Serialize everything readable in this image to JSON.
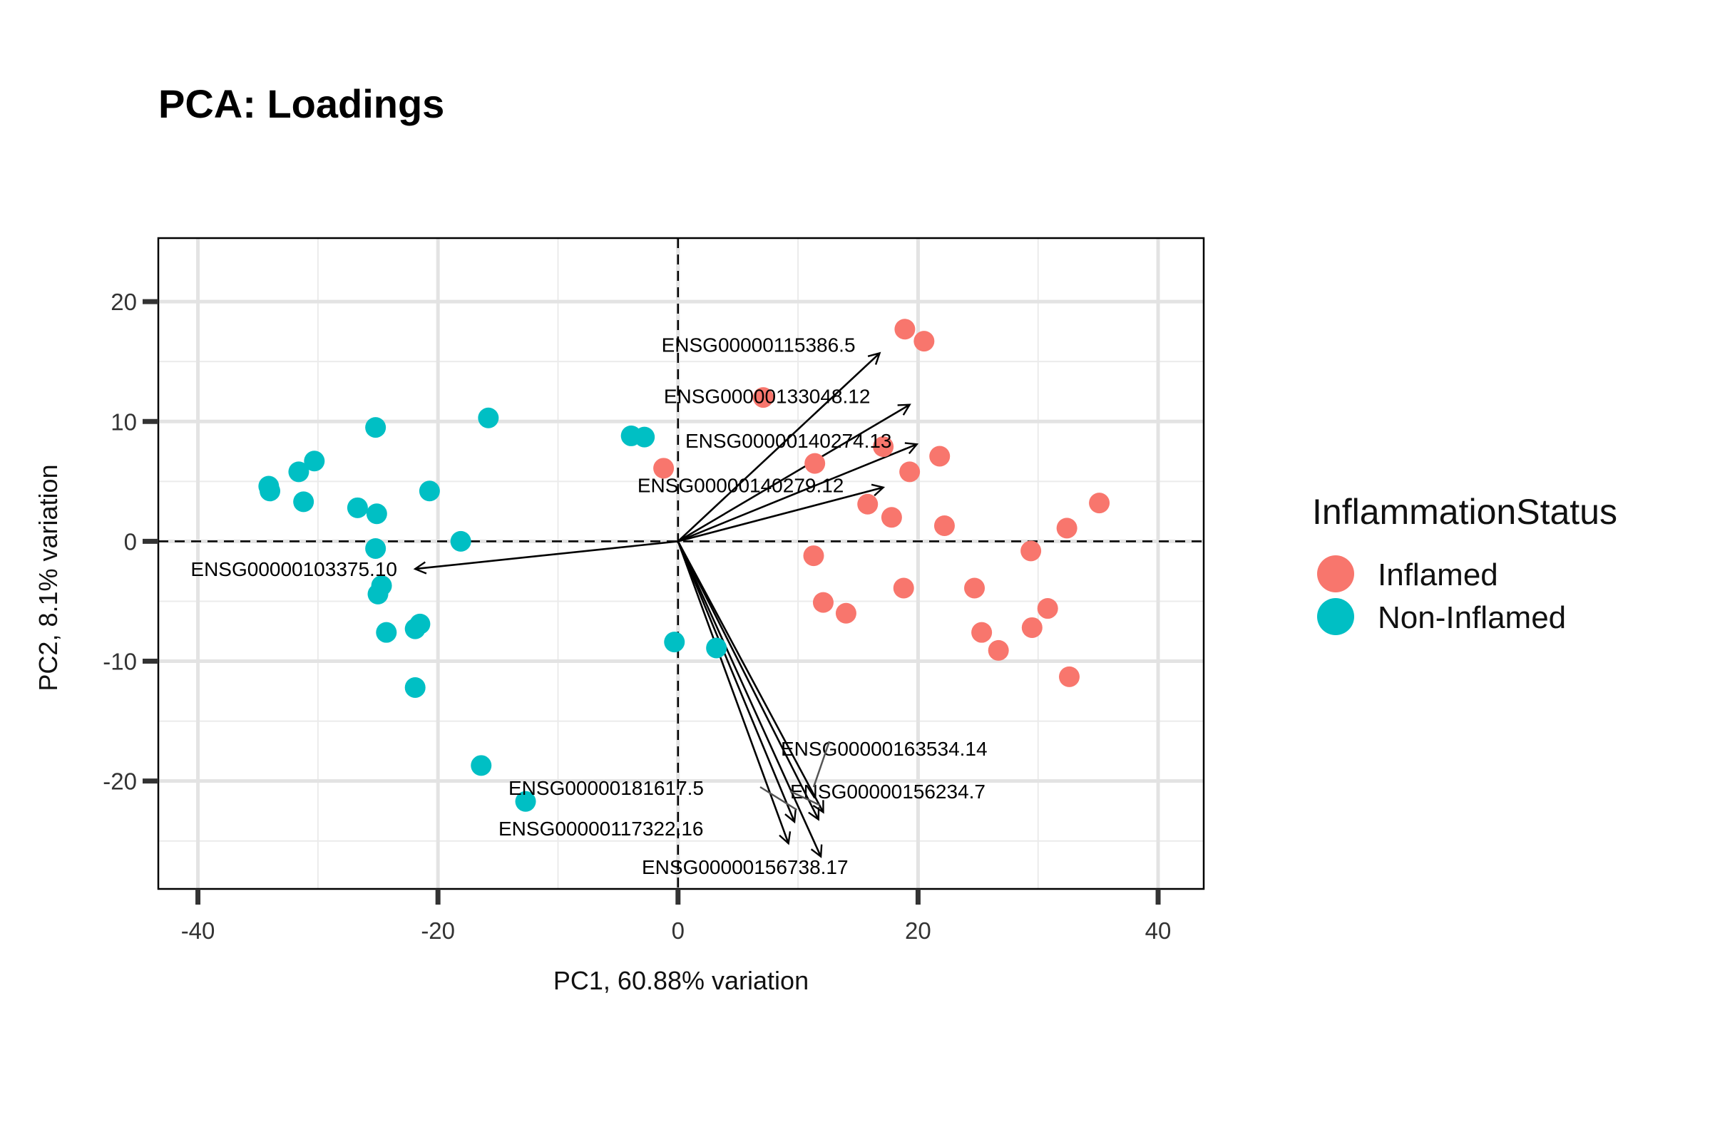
{
  "chart_data": {
    "type": "scatter",
    "title": "PCA: Loadings",
    "xlabel": "PC1, 60.88% variation",
    "ylabel": "PC2, 8.1% variation",
    "xlim": [
      -43.3,
      43.8
    ],
    "ylim": [
      -29.0,
      25.3
    ],
    "x_ticks": [
      -40,
      -20,
      0,
      20,
      40
    ],
    "x_tick_labels": [
      "-40",
      "-20",
      "0",
      "20",
      "40"
    ],
    "y_ticks": [
      -20,
      -10,
      0,
      10,
      20
    ],
    "y_tick_labels": [
      "-20",
      "-10",
      "0",
      "10",
      "20"
    ],
    "grid": true,
    "legend_position": "right",
    "legend_title": "InflammationStatus",
    "series": [
      {
        "name": "Inflamed",
        "color": "#F8766D",
        "points": [
          [
            18.9,
            17.7
          ],
          [
            20.5,
            16.7
          ],
          [
            7.1,
            12.0
          ],
          [
            17.1,
            7.9
          ],
          [
            21.8,
            7.1
          ],
          [
            11.4,
            6.5
          ],
          [
            19.3,
            5.8
          ],
          [
            -1.2,
            6.1
          ],
          [
            15.8,
            3.1
          ],
          [
            17.8,
            2.0
          ],
          [
            22.2,
            1.3
          ],
          [
            35.1,
            3.2
          ],
          [
            32.4,
            1.1
          ],
          [
            29.4,
            -0.8
          ],
          [
            11.3,
            -1.2
          ],
          [
            18.8,
            -3.9
          ],
          [
            24.7,
            -3.9
          ],
          [
            12.1,
            -5.1
          ],
          [
            14.0,
            -6.0
          ],
          [
            30.8,
            -5.6
          ],
          [
            25.3,
            -7.6
          ],
          [
            29.5,
            -7.2
          ],
          [
            26.7,
            -9.1
          ],
          [
            32.6,
            -11.3
          ]
        ]
      },
      {
        "name": "Non-Inflamed",
        "color": "#00BFC4",
        "points": [
          [
            -34.1,
            4.6
          ],
          [
            -34.0,
            4.2
          ],
          [
            -31.6,
            5.8
          ],
          [
            -30.3,
            6.7
          ],
          [
            -31.2,
            3.3
          ],
          [
            -25.2,
            9.5
          ],
          [
            -15.8,
            10.3
          ],
          [
            -26.7,
            2.8
          ],
          [
            -25.1,
            2.3
          ],
          [
            -20.7,
            4.2
          ],
          [
            -18.1,
            0.0
          ],
          [
            -25.2,
            -0.6
          ],
          [
            -24.7,
            -3.7
          ],
          [
            -25.0,
            -4.4
          ],
          [
            -24.3,
            -7.6
          ],
          [
            -21.9,
            -7.3
          ],
          [
            -21.5,
            -6.9
          ],
          [
            -21.9,
            -12.2
          ],
          [
            -16.4,
            -18.7
          ],
          [
            -12.7,
            -21.7
          ],
          [
            -3.9,
            8.8
          ],
          [
            -2.8,
            8.7
          ],
          [
            -0.3,
            -8.4
          ],
          [
            3.2,
            -8.9
          ]
        ]
      }
    ],
    "loadings": [
      {
        "label": "ENSG00000115386.5",
        "x": 16.8,
        "y": 15.7
      },
      {
        "label": "ENSG00000133048.12",
        "x": 19.3,
        "y": 11.4
      },
      {
        "label": "ENSG00000140274.13",
        "x": 19.9,
        "y": 8.1
      },
      {
        "label": "ENSG00000140279.12",
        "x": 17.1,
        "y": 4.5
      },
      {
        "label": "ENSG00000103375.10",
        "x": -21.9,
        "y": -2.3
      },
      {
        "label": "ENSG00000163534.14",
        "x": 11.7,
        "y": -23.2
      },
      {
        "label": "ENSG00000181617.5",
        "x": 9.7,
        "y": -23.4
      },
      {
        "label": "ENSG00000156234.7",
        "x": 12.1,
        "y": -22.6
      },
      {
        "label": "ENSG00000117322.16",
        "x": 9.2,
        "y": -25.2
      },
      {
        "label": "ENSG00000156738.17",
        "x": 11.9,
        "y": -26.3
      }
    ]
  }
}
